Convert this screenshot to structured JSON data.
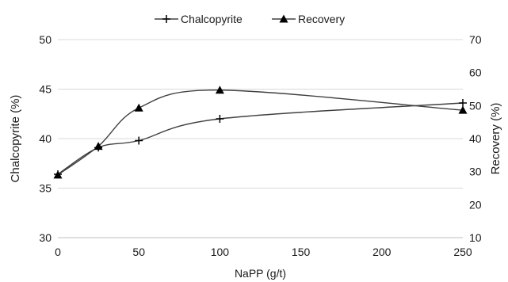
{
  "chart_data": {
    "type": "line",
    "x": [
      0,
      25,
      50,
      100,
      250
    ],
    "xlabel": "NaPP (g/t)",
    "xlim": [
      0,
      250
    ],
    "x_ticks": [
      0,
      50,
      100,
      150,
      200,
      250
    ],
    "ylabel_left": "Chalcopyrite (%)",
    "ylim_left": [
      30,
      50
    ],
    "y_ticks_left": [
      30,
      35,
      40,
      45,
      50
    ],
    "ylabel_right": "Recovery (%)",
    "ylim_right": [
      10,
      70
    ],
    "y_ticks_right": [
      10,
      20,
      30,
      40,
      50,
      60,
      70
    ],
    "grid": "horizontal",
    "legend_position": "top-center",
    "series": [
      {
        "name": "Chalcopyrite",
        "axis": "left",
        "marker": "plus",
        "color": "#000000",
        "values": [
          36.4,
          39.1,
          39.8,
          42.0,
          43.6
        ]
      },
      {
        "name": "Recovery",
        "axis": "right",
        "marker": "triangle",
        "color": "#000000",
        "values": [
          29.0,
          37.7,
          49.3,
          54.7,
          48.6
        ]
      }
    ]
  }
}
